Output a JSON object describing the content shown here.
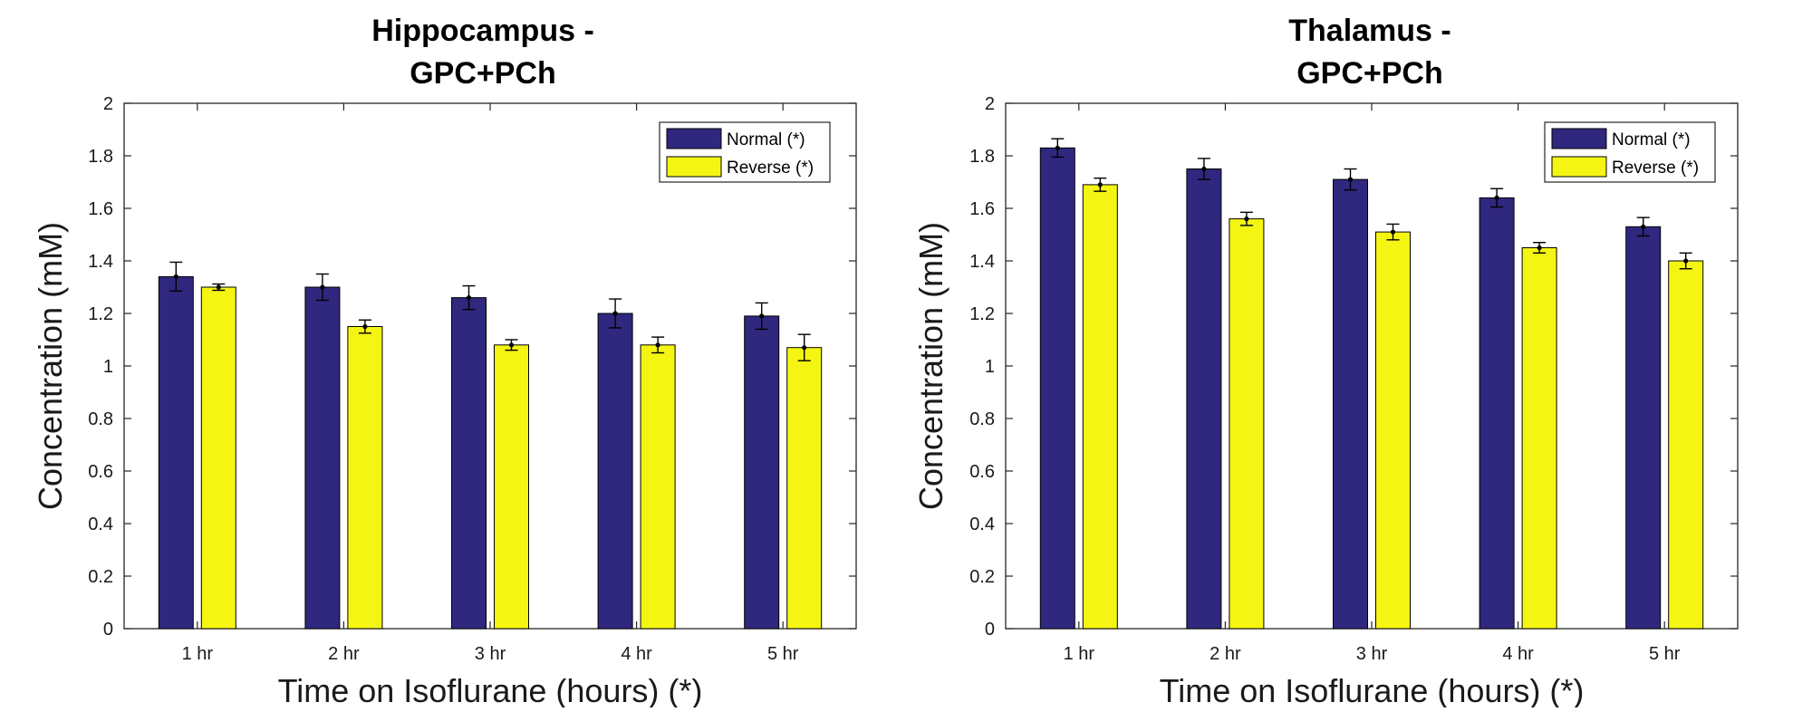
{
  "chart_data": [
    {
      "type": "bar",
      "title_lines": [
        "Hippocampus -",
        "GPC+PCh"
      ],
      "xlabel": "Time on Isoflurane (hours) (*)",
      "ylabel": "Concentration (mM)",
      "categories": [
        "1 hr",
        "2 hr",
        "3 hr",
        "4 hr",
        "5 hr"
      ],
      "ylim": [
        0,
        2
      ],
      "yticks": [
        "0",
        "0.2",
        "0.4",
        "0.6",
        "0.8",
        "1",
        "1.2",
        "1.4",
        "1.6",
        "1.8",
        "2"
      ],
      "legend_position": "top-right",
      "series": [
        {
          "name": "Normal (*)",
          "color": "#30277f",
          "values": [
            1.34,
            1.3,
            1.26,
            1.2,
            1.19
          ],
          "errors": [
            0.055,
            0.05,
            0.045,
            0.055,
            0.05
          ]
        },
        {
          "name": "Reverse (*)",
          "color": "#f5f514",
          "values": [
            1.3,
            1.15,
            1.08,
            1.08,
            1.07
          ],
          "errors": [
            0.012,
            0.025,
            0.02,
            0.03,
            0.05
          ]
        }
      ]
    },
    {
      "type": "bar",
      "title_lines": [
        "Thalamus -",
        "GPC+PCh"
      ],
      "xlabel": "Time on Isoflurane (hours) (*)",
      "ylabel": "Concentration (mM)",
      "categories": [
        "1 hr",
        "2 hr",
        "3 hr",
        "4 hr",
        "5 hr"
      ],
      "ylim": [
        0,
        2
      ],
      "yticks": [
        "0",
        "0.2",
        "0.4",
        "0.6",
        "0.8",
        "1",
        "1.2",
        "1.4",
        "1.6",
        "1.8",
        "2"
      ],
      "legend_position": "top-right",
      "series": [
        {
          "name": "Normal (*)",
          "color": "#30277f",
          "values": [
            1.83,
            1.75,
            1.71,
            1.64,
            1.53
          ],
          "errors": [
            0.035,
            0.04,
            0.04,
            0.035,
            0.035
          ]
        },
        {
          "name": "Reverse (*)",
          "color": "#f5f514",
          "values": [
            1.69,
            1.56,
            1.51,
            1.45,
            1.4
          ],
          "errors": [
            0.025,
            0.025,
            0.03,
            0.02,
            0.03
          ]
        }
      ]
    }
  ]
}
